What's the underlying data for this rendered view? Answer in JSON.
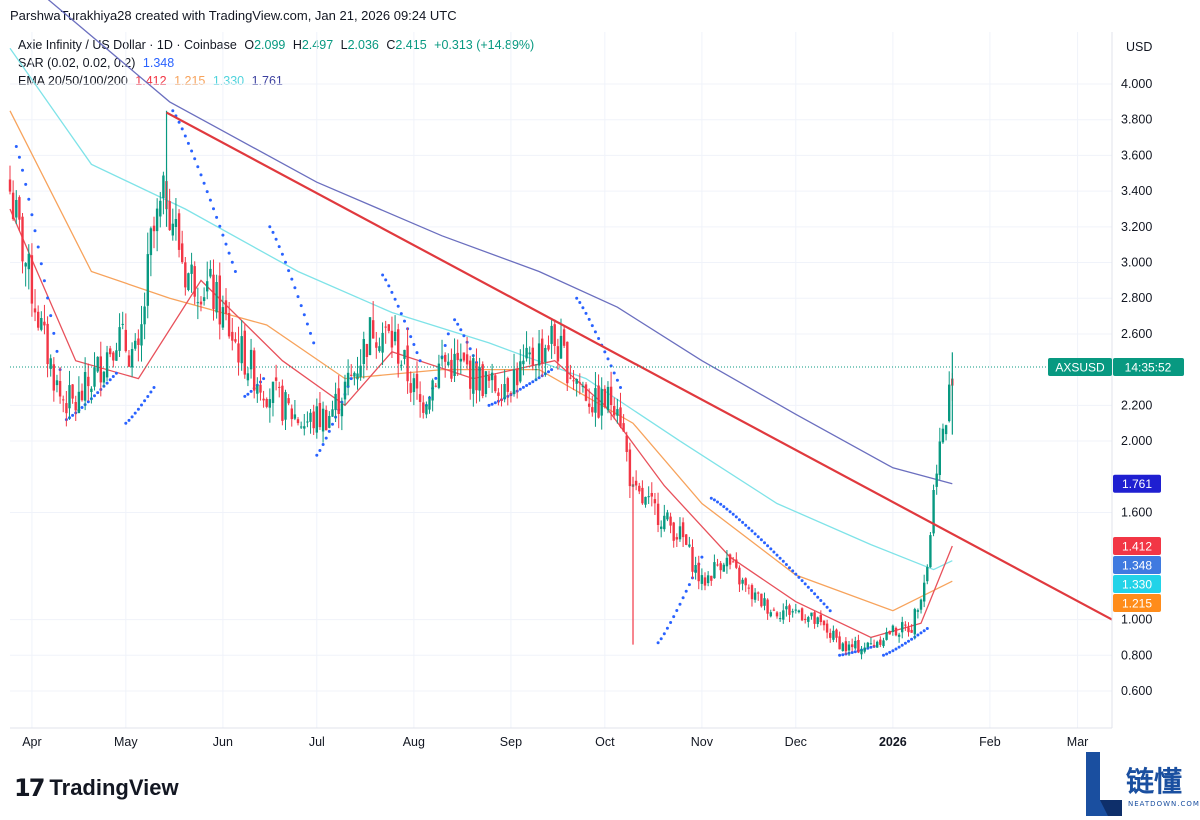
{
  "header": {
    "text": "ParshwaTurakhiya28 created with TradingView.com, Jan 21, 2026 09:24 UTC"
  },
  "legend": {
    "symbol": "Axie Infinity / US Dollar · 1D · Coinbase",
    "o_label": "O",
    "o_value": "2.099",
    "h_label": "H",
    "h_value": "2.497",
    "l_label": "L",
    "l_value": "2.036",
    "c_label": "C",
    "c_value": "2.415",
    "change": "+0.313 (+14.89%)",
    "sar_label": "SAR (0.02, 0.02, 0.2)",
    "sar_value": "1.348",
    "ema_label": "EMA 20/50/100/200",
    "ema20": "1.412",
    "ema50": "1.215",
    "ema100": "1.330",
    "ema200": "1.761"
  },
  "currency": "USD",
  "price_tag": {
    "symbol": "AXSUSD",
    "time": "14:35:52",
    "value": 2.415
  },
  "footer": {
    "brand": "TradingView",
    "brand_mark": "17"
  },
  "watermark": {
    "text": "链懂",
    "sub": "NEATDOWN.COM"
  },
  "colors": {
    "up": "#089981",
    "down": "#f23645",
    "trendline": "#e0393e",
    "ema20": "#e8515b",
    "ema50": "#f7a35c",
    "ema100": "#7fe3e8",
    "ema200": "#6b6fbf",
    "sar": "#2962ff",
    "ema_tag20": "#f23645",
    "ema_tag50": "#ff8c1a",
    "ema_tag100": "#22d3e8",
    "ema_tag200": "#1f1fd1",
    "sar_tag": "#3f7ae0"
  },
  "chart_data": {
    "type": "candlestick",
    "ylim": [
      0.5,
      4.15
    ],
    "y_ticks": [
      "4.000",
      "3.800",
      "3.600",
      "3.400",
      "3.200",
      "3.000",
      "2.800",
      "2.600",
      "2.200",
      "2.000",
      "1.600",
      "1.000",
      "0.800",
      "0.600"
    ],
    "x_ticks": [
      {
        "label": "Apr",
        "date": "2025-04-01"
      },
      {
        "label": "May",
        "date": "2025-05-01"
      },
      {
        "label": "Jun",
        "date": "2025-06-01"
      },
      {
        "label": "Jul",
        "date": "2025-07-01"
      },
      {
        "label": "Aug",
        "date": "2025-08-01"
      },
      {
        "label": "Sep",
        "date": "2025-09-01"
      },
      {
        "label": "Oct",
        "date": "2025-10-01"
      },
      {
        "label": "Nov",
        "date": "2025-11-01"
      },
      {
        "label": "Dec",
        "date": "2025-12-01"
      },
      {
        "label": "2026",
        "date": "2026-01-01"
      },
      {
        "label": "Feb",
        "date": "2026-02-01"
      },
      {
        "label": "Mar",
        "date": "2026-03-01"
      }
    ],
    "x_range": [
      "2025-03-25",
      "2026-03-12"
    ],
    "close_path": [
      [
        "2025-03-25",
        3.4
      ],
      [
        "2025-03-30",
        3.0
      ],
      [
        "2025-04-05",
        2.55
      ],
      [
        "2025-04-10",
        2.25
      ],
      [
        "2025-04-15",
        2.2
      ],
      [
        "2025-04-22",
        2.4
      ],
      [
        "2025-04-28",
        2.6
      ],
      [
        "2025-05-05",
        2.45
      ],
      [
        "2025-05-09",
        3.1
      ],
      [
        "2025-05-14",
        3.4
      ],
      [
        "2025-05-20",
        2.95
      ],
      [
        "2025-05-28",
        2.85
      ],
      [
        "2025-06-05",
        2.55
      ],
      [
        "2025-06-12",
        2.35
      ],
      [
        "2025-06-20",
        2.2
      ],
      [
        "2025-06-27",
        2.1
      ],
      [
        "2025-07-05",
        2.15
      ],
      [
        "2025-07-12",
        2.35
      ],
      [
        "2025-07-19",
        2.65
      ],
      [
        "2025-07-26",
        2.55
      ],
      [
        "2025-08-03",
        2.2
      ],
      [
        "2025-08-10",
        2.45
      ],
      [
        "2025-08-18",
        2.4
      ],
      [
        "2025-08-26",
        2.3
      ],
      [
        "2025-09-05",
        2.4
      ],
      [
        "2025-09-14",
        2.58
      ],
      [
        "2025-09-20",
        2.4
      ],
      [
        "2025-09-28",
        2.2
      ],
      [
        "2025-10-05",
        2.25
      ],
      [
        "2025-10-10",
        1.7
      ],
      [
        "2025-10-18",
        1.6
      ],
      [
        "2025-10-26",
        1.45
      ],
      [
        "2025-11-01",
        1.2
      ],
      [
        "2025-11-08",
        1.35
      ],
      [
        "2025-11-16",
        1.15
      ],
      [
        "2025-11-24",
        1.05
      ],
      [
        "2025-12-02",
        1.05
      ],
      [
        "2025-12-10",
        0.95
      ],
      [
        "2025-12-17",
        0.84
      ],
      [
        "2025-12-24",
        0.85
      ],
      [
        "2025-12-31",
        0.93
      ],
      [
        "2026-01-07",
        0.96
      ],
      [
        "2026-01-12",
        1.3
      ],
      [
        "2026-01-15",
        1.9
      ],
      [
        "2026-01-18",
        2.1
      ],
      [
        "2026-01-20",
        2.415
      ]
    ],
    "extra_wicks": [
      {
        "date": "2025-05-14",
        "high": 3.85,
        "low": 3.2
      },
      {
        "date": "2025-10-10",
        "high": 1.8,
        "low": 0.86
      },
      {
        "date": "2026-01-20",
        "high": 2.497,
        "low": 2.036
      }
    ],
    "trendline": {
      "from": [
        "2025-05-14",
        3.84
      ],
      "to": [
        "2026-03-12",
        1.0
      ]
    },
    "ema20": [
      [
        "2025-03-25",
        3.3
      ],
      [
        "2025-04-15",
        2.45
      ],
      [
        "2025-05-05",
        2.35
      ],
      [
        "2025-05-25",
        2.9
      ],
      [
        "2025-06-20",
        2.45
      ],
      [
        "2025-07-10",
        2.2
      ],
      [
        "2025-07-25",
        2.5
      ],
      [
        "2025-08-20",
        2.35
      ],
      [
        "2025-09-15",
        2.45
      ],
      [
        "2025-10-01",
        2.2
      ],
      [
        "2025-10-20",
        1.75
      ],
      [
        "2025-11-10",
        1.35
      ],
      [
        "2025-12-01",
        1.1
      ],
      [
        "2025-12-25",
        0.9
      ],
      [
        "2026-01-10",
        0.98
      ],
      [
        "2026-01-20",
        1.412
      ]
    ],
    "ema50": [
      [
        "2025-03-25",
        3.85
      ],
      [
        "2025-04-20",
        2.95
      ],
      [
        "2025-05-15",
        2.8
      ],
      [
        "2025-06-15",
        2.65
      ],
      [
        "2025-07-10",
        2.35
      ],
      [
        "2025-08-10",
        2.4
      ],
      [
        "2025-09-10",
        2.4
      ],
      [
        "2025-10-10",
        2.1
      ],
      [
        "2025-11-01",
        1.65
      ],
      [
        "2025-12-01",
        1.25
      ],
      [
        "2026-01-01",
        1.05
      ],
      [
        "2026-01-20",
        1.215
      ]
    ],
    "ema100": [
      [
        "2025-03-25",
        4.2
      ],
      [
        "2025-04-20",
        3.55
      ],
      [
        "2025-05-20",
        3.3
      ],
      [
        "2025-06-25",
        2.95
      ],
      [
        "2025-07-25",
        2.72
      ],
      [
        "2025-08-25",
        2.55
      ],
      [
        "2025-09-25",
        2.35
      ],
      [
        "2025-10-25",
        2.0
      ],
      [
        "2025-11-25",
        1.65
      ],
      [
        "2025-12-25",
        1.42
      ],
      [
        "2026-01-14",
        1.28
      ],
      [
        "2026-01-20",
        1.33
      ]
    ],
    "ema200": [
      [
        "2025-04-01",
        4.55
      ],
      [
        "2025-05-15",
        3.9
      ],
      [
        "2025-07-01",
        3.45
      ],
      [
        "2025-08-10",
        3.15
      ],
      [
        "2025-09-10",
        2.95
      ],
      [
        "2025-10-05",
        2.75
      ],
      [
        "2025-11-01",
        2.45
      ],
      [
        "2025-12-01",
        2.15
      ],
      [
        "2026-01-01",
        1.85
      ],
      [
        "2026-01-20",
        1.761
      ]
    ],
    "sar_segments": [
      [
        [
          "2025-03-27",
          3.65
        ],
        [
          "2025-04-10",
          2.4
        ]
      ],
      [
        [
          "2025-04-12",
          2.12
        ],
        [
          "2025-04-28",
          2.38
        ]
      ],
      [
        [
          "2025-05-01",
          2.1
        ],
        [
          "2025-05-10",
          2.3
        ]
      ],
      [
        [
          "2025-05-16",
          3.85
        ],
        [
          "2025-06-05",
          2.95
        ]
      ],
      [
        [
          "2025-06-08",
          2.25
        ],
        [
          "2025-06-14",
          2.35
        ]
      ],
      [
        [
          "2025-06-16",
          3.2
        ],
        [
          "2025-06-30",
          2.55
        ]
      ],
      [
        [
          "2025-07-01",
          1.92
        ],
        [
          "2025-07-12",
          2.35
        ]
      ],
      [
        [
          "2025-07-22",
          2.93
        ],
        [
          "2025-08-03",
          2.45
        ]
      ],
      [
        [
          "2025-08-05",
          2.2
        ],
        [
          "2025-08-12",
          2.6
        ]
      ],
      [
        [
          "2025-08-14",
          2.68
        ],
        [
          "2025-08-22",
          2.4
        ]
      ],
      [
        [
          "2025-08-25",
          2.2
        ],
        [
          "2025-09-14",
          2.4
        ]
      ],
      [
        [
          "2025-09-22",
          2.8
        ],
        [
          "2025-10-06",
          2.3
        ]
      ],
      [
        [
          "2025-10-18",
          0.87
        ],
        [
          "2025-11-01",
          1.35
        ]
      ],
      [
        [
          "2025-11-04",
          1.68
        ],
        [
          "2025-12-12",
          1.05
        ]
      ],
      [
        [
          "2025-12-15",
          0.8
        ],
        [
          "2025-12-26",
          0.85
        ]
      ],
      [
        [
          "2025-12-29",
          0.8
        ],
        [
          "2026-01-12",
          0.95
        ]
      ]
    ],
    "ema_tags": [
      {
        "label": "1.761",
        "value": 1.761,
        "color_key": "ema_tag200"
      },
      {
        "label": "1.412",
        "value": 1.412,
        "color_key": "ema_tag20"
      },
      {
        "label": "1.348",
        "value": 1.348,
        "color_key": "sar_tag"
      },
      {
        "label": "1.330",
        "value": 1.33,
        "color_key": "ema_tag100"
      },
      {
        "label": "1.215",
        "value": 1.215,
        "color_key": "ema_tag50"
      }
    ]
  }
}
